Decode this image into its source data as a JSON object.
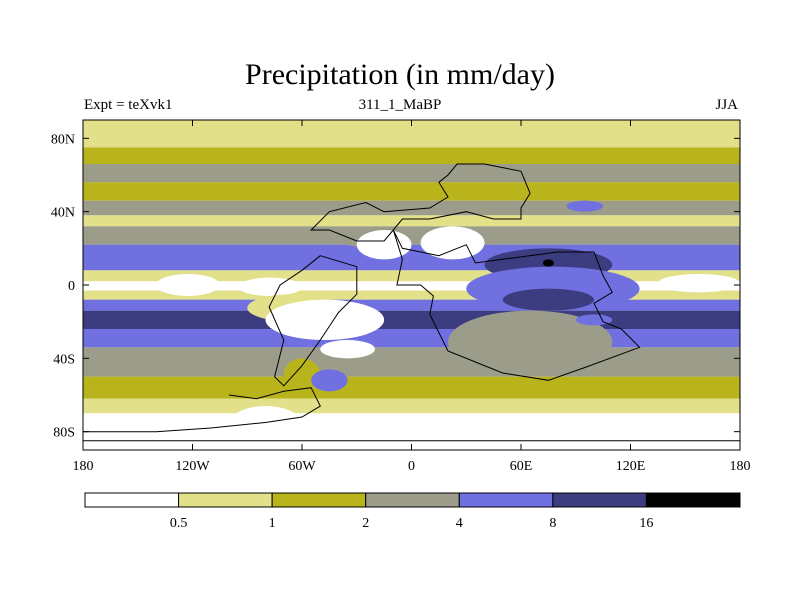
{
  "title": "Precipitation (in mm/day)",
  "subtitle_left": "Expt = teXvk1",
  "subtitle_center": "311_1_MaBP",
  "subtitle_right": "JJA",
  "chart_data": {
    "type": "heatmap",
    "title": "Precipitation (in mm/day)",
    "xlim": [
      -180,
      180
    ],
    "ylim": [
      -90,
      90
    ],
    "x_ticks": [
      {
        "value": -180,
        "label": "180"
      },
      {
        "value": -120,
        "label": "120W"
      },
      {
        "value": -60,
        "label": "60W"
      },
      {
        "value": 0,
        "label": "0"
      },
      {
        "value": 60,
        "label": "60E"
      },
      {
        "value": 120,
        "label": "120E"
      },
      {
        "value": 180,
        "label": "180"
      }
    ],
    "y_ticks": [
      {
        "value": 80,
        "label": "80N"
      },
      {
        "value": 40,
        "label": "40N"
      },
      {
        "value": 0,
        "label": "0"
      },
      {
        "value": -40,
        "label": "40S"
      },
      {
        "value": -80,
        "label": "80S"
      }
    ],
    "colorbar": {
      "levels": [
        "0.5",
        "1",
        "2",
        "4",
        "8",
        "16"
      ],
      "colors": [
        "#ffffff",
        "#e3e08a",
        "#b9b41c",
        "#9c9c8a",
        "#7070e0",
        "#3c3c80",
        "#000000"
      ]
    },
    "bands": [
      {
        "lat": [
          90,
          75
        ],
        "cls": 1
      },
      {
        "lat": [
          75,
          66
        ],
        "cls": 2
      },
      {
        "lat": [
          66,
          56
        ],
        "cls": 3
      },
      {
        "lat": [
          56,
          46
        ],
        "cls": 2
      },
      {
        "lat": [
          46,
          38
        ],
        "cls": 3
      },
      {
        "lat": [
          38,
          32
        ],
        "cls": 1
      },
      {
        "lat": [
          32,
          22
        ],
        "cls": 3
      },
      {
        "lat": [
          22,
          8
        ],
        "cls": 4
      },
      {
        "lat": [
          8,
          2
        ],
        "cls": 1
      },
      {
        "lat": [
          2,
          -3
        ],
        "cls": 0
      },
      {
        "lat": [
          -3,
          -8
        ],
        "cls": 1
      },
      {
        "lat": [
          -8,
          -14
        ],
        "cls": 4
      },
      {
        "lat": [
          -14,
          -24
        ],
        "cls": 5
      },
      {
        "lat": [
          -24,
          -34
        ],
        "cls": 4
      },
      {
        "lat": [
          -34,
          -50
        ],
        "cls": 3
      },
      {
        "lat": [
          -50,
          -62
        ],
        "cls": 2
      },
      {
        "lat": [
          -62,
          -70
        ],
        "cls": 1
      },
      {
        "lat": [
          -70,
          -90
        ],
        "cls": 0
      }
    ],
    "regions": [
      {
        "cls": 0,
        "lon": [
          -140,
          -105
        ],
        "lat": [
          6,
          -6
        ]
      },
      {
        "cls": 0,
        "lon": [
          -95,
          -60
        ],
        "lat": [
          4,
          -6
        ]
      },
      {
        "cls": 0,
        "lon": [
          135,
          180
        ],
        "lat": [
          6,
          -4
        ]
      },
      {
        "cls": 3,
        "lon": [
          -40,
          0
        ],
        "lat": [
          32,
          20
        ]
      },
      {
        "cls": 0,
        "lon": [
          -30,
          0
        ],
        "lat": [
          30,
          14
        ]
      },
      {
        "cls": 0,
        "lon": [
          5,
          40
        ],
        "lat": [
          32,
          14
        ]
      },
      {
        "cls": 5,
        "lon": [
          40,
          110
        ],
        "lat": [
          20,
          2
        ]
      },
      {
        "cls": 4,
        "lon": [
          30,
          125
        ],
        "lat": [
          10,
          -14
        ]
      },
      {
        "cls": 5,
        "lon": [
          50,
          100
        ],
        "lat": [
          -2,
          -14
        ]
      },
      {
        "cls": 1,
        "lon": [
          40,
          60
        ],
        "lat": [
          -18,
          -24
        ]
      },
      {
        "cls": 3,
        "lon": [
          20,
          110
        ],
        "lat": [
          -14,
          -48
        ]
      },
      {
        "cls": 1,
        "lon": [
          -90,
          -40
        ],
        "lat": [
          -5,
          -20
        ]
      },
      {
        "cls": 0,
        "lon": [
          -80,
          -15
        ],
        "lat": [
          -8,
          -30
        ]
      },
      {
        "cls": 0,
        "lon": [
          -50,
          -20
        ],
        "lat": [
          -30,
          -40
        ]
      },
      {
        "cls": 2,
        "lon": [
          -70,
          -50
        ],
        "lat": [
          -40,
          -58
        ]
      },
      {
        "cls": 4,
        "lon": [
          -55,
          -35
        ],
        "lat": [
          -46,
          -58
        ]
      },
      {
        "cls": 4,
        "lon": [
          90,
          110
        ],
        "lat": [
          -16,
          -22
        ]
      },
      {
        "cls": 4,
        "lon": [
          85,
          105
        ],
        "lat": [
          46,
          40
        ]
      },
      {
        "cls": 0,
        "lon": [
          -100,
          -60
        ],
        "lat": [
          -66,
          -86
        ]
      },
      {
        "cls": 6,
        "lon": [
          72,
          78
        ],
        "lat": [
          14,
          10
        ]
      }
    ],
    "coastlines": [
      [
        [
          20,
          60
        ],
        [
          25,
          66
        ],
        [
          40,
          66
        ],
        [
          60,
          62
        ],
        [
          65,
          50
        ],
        [
          60,
          42
        ],
        [
          60,
          36
        ],
        [
          45,
          36
        ],
        [
          30,
          40
        ],
        [
          10,
          36
        ],
        [
          -5,
          36
        ],
        [
          -10,
          30
        ],
        [
          -15,
          24
        ],
        [
          -30,
          24
        ],
        [
          -45,
          30
        ],
        [
          -55,
          30
        ],
        [
          -45,
          40
        ],
        [
          -25,
          45
        ],
        [
          -15,
          40
        ],
        [
          10,
          42
        ],
        [
          20,
          48
        ],
        [
          15,
          56
        ],
        [
          20,
          60
        ]
      ],
      [
        [
          -10,
          30
        ],
        [
          -5,
          20
        ],
        [
          15,
          16
        ],
        [
          30,
          22
        ],
        [
          35,
          12
        ],
        [
          50,
          14
        ],
        [
          80,
          18
        ],
        [
          100,
          18
        ],
        [
          105,
          5
        ],
        [
          110,
          -4
        ],
        [
          100,
          -10
        ],
        [
          105,
          -20
        ],
        [
          115,
          -24
        ],
        [
          125,
          -34
        ],
        [
          95,
          -45
        ],
        [
          75,
          -52
        ],
        [
          50,
          -48
        ],
        [
          20,
          -36
        ],
        [
          10,
          -16
        ],
        [
          12,
          -6
        ],
        [
          5,
          0
        ],
        [
          -8,
          0
        ],
        [
          -5,
          14
        ],
        [
          -10,
          30
        ]
      ],
      [
        [
          -50,
          16
        ],
        [
          -30,
          10
        ],
        [
          -30,
          -5
        ],
        [
          -40,
          -15
        ],
        [
          -50,
          -30
        ],
        [
          -60,
          -44
        ],
        [
          -70,
          -55
        ],
        [
          -75,
          -50
        ],
        [
          -70,
          -30
        ],
        [
          -78,
          -12
        ],
        [
          -72,
          0
        ],
        [
          -60,
          8
        ],
        [
          -50,
          16
        ]
      ],
      [
        [
          -100,
          -60
        ],
        [
          -85,
          -62
        ],
        [
          -70,
          -58
        ],
        [
          -55,
          -56
        ],
        [
          -50,
          -66
        ],
        [
          -60,
          -72
        ],
        [
          -80,
          -75
        ],
        [
          -110,
          -78
        ],
        [
          -140,
          -80
        ],
        [
          -170,
          -80
        ],
        [
          -180,
          -80
        ]
      ],
      [
        [
          -180,
          -85
        ],
        [
          180,
          -85
        ]
      ]
    ]
  }
}
